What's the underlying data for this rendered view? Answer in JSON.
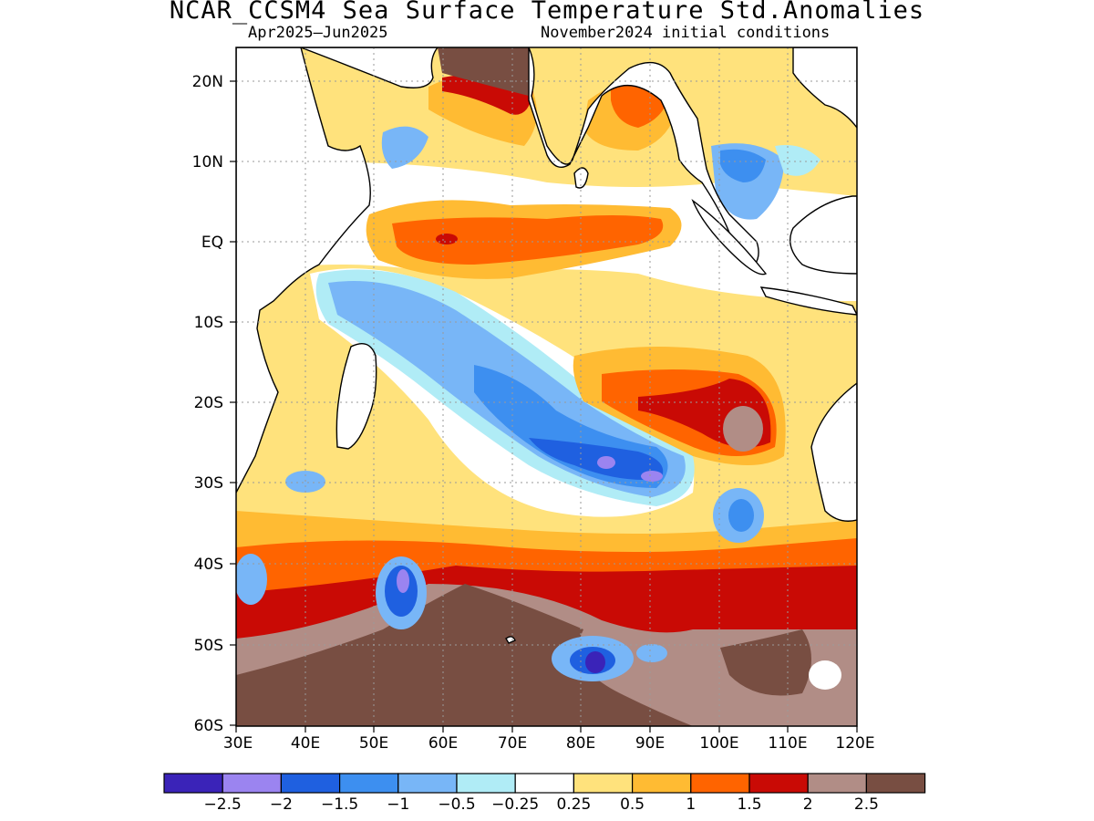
{
  "title": "NCAR_CCSM4 Sea Surface Temperature Std.Anomalies",
  "subtitle_left": "Apr2025–Jun2025",
  "subtitle_right": "November2024 initial conditions",
  "map": {
    "lat_labels": [
      "20N",
      "10N",
      "EQ",
      "10S",
      "20S",
      "30S",
      "40S",
      "50S",
      "60S"
    ],
    "lon_labels": [
      "30E",
      "40E",
      "50E",
      "60E",
      "70E",
      "80E",
      "90E",
      "100E",
      "110E",
      "120E"
    ]
  },
  "colorbar": {
    "colors": [
      "#3a23b8",
      "#9b84f0",
      "#1f60e0",
      "#3d8ff0",
      "#78b6f7",
      "#b0ecf6",
      "#ffffff",
      "#ffe27c",
      "#ffbb33",
      "#ff6400",
      "#c90a05",
      "#b18d86",
      "#784e42"
    ],
    "labels": [
      "-2.5",
      "-2",
      "-1.5",
      "-1",
      "-0.5",
      "-0.25",
      "0.25",
      "0.5",
      "1",
      "1.5",
      "2",
      "2.5"
    ]
  }
}
